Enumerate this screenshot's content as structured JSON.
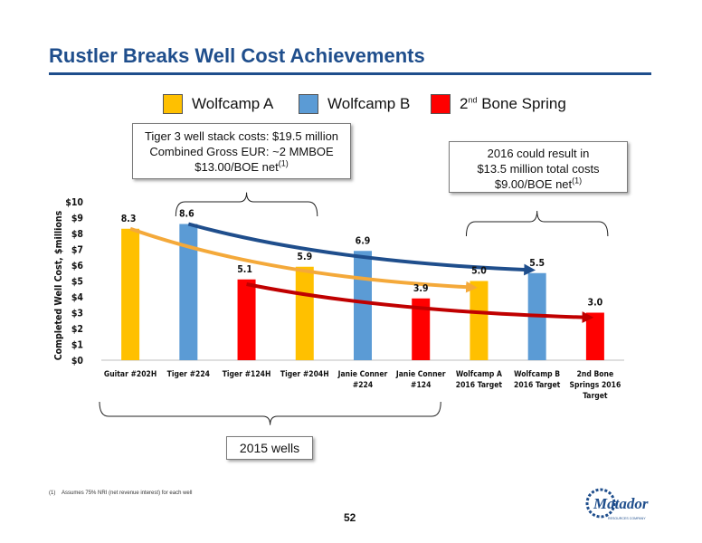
{
  "slide": {
    "title": "Rustler Breaks Well Cost Achievements",
    "page_number": "52",
    "footnote_marker": "(1)",
    "footnote_text": "Assumes 75% NRI (net revenue interest) for each well",
    "logo_text": "Matador",
    "logo_subtext": "RESOURCES COMPANY"
  },
  "legend": [
    {
      "label_main": "Wolfcamp A",
      "label_sup": "",
      "label_rest": "",
      "color": "#FFC000"
    },
    {
      "label_main": "Wolfcamp B",
      "label_sup": "",
      "label_rest": "",
      "color": "#5B9BD5"
    },
    {
      "label_main": "2",
      "label_sup": "nd",
      "label_rest": " Bone Spring",
      "color": "#FF0000"
    }
  ],
  "callouts": {
    "tiger": {
      "line1": "Tiger 3 well stack costs: $19.5 million",
      "line2": "Combined Gross EUR: ~2 MMBOE",
      "line3": "$13.00/BOE net",
      "line3_sup": "(1)"
    },
    "target": {
      "line1": "2016 could result in",
      "line2": "$13.5 million total costs",
      "line3": "$9.00/BOE net",
      "line3_sup": "(1)"
    },
    "wells2015": {
      "label": "2015 wells"
    }
  },
  "chart_data": {
    "type": "bar",
    "ylabel": "Completed Well Cost, $millions",
    "ylim": [
      0,
      10
    ],
    "yticks": [
      "$0",
      "$1",
      "$2",
      "$3",
      "$4",
      "$5",
      "$6",
      "$7",
      "$8",
      "$9",
      "$10"
    ],
    "bars": [
      {
        "category": [
          "Guitar #202H"
        ],
        "value": 8.3,
        "label": "8.3",
        "color": "#FFC000"
      },
      {
        "category": [
          "Tiger #224"
        ],
        "value": 8.6,
        "label": "8.6",
        "color": "#5B9BD5"
      },
      {
        "category": [
          "Tiger #124H"
        ],
        "value": 5.1,
        "label": "5.1",
        "color": "#FF0000"
      },
      {
        "category": [
          "Tiger #204H"
        ],
        "value": 5.9,
        "label": "5.9",
        "color": "#FFC000"
      },
      {
        "category": [
          "Janie Conner",
          "#224"
        ],
        "value": 6.9,
        "label": "6.9",
        "color": "#5B9BD5"
      },
      {
        "category": [
          "Janie Conner",
          "#124"
        ],
        "value": 3.9,
        "label": "3.9",
        "color": "#FF0000"
      },
      {
        "category": [
          "Wolfcamp A",
          "2016 Target"
        ],
        "value": 5.0,
        "label": "5.0",
        "color": "#FFC000"
      },
      {
        "category": [
          "Wolfcamp B",
          "2016 Target"
        ],
        "value": 5.5,
        "label": "5.5",
        "color": "#5B9BD5"
      },
      {
        "category": [
          "2nd Bone",
          "Springs 2016",
          "Target"
        ],
        "value": 3.0,
        "label": "3.0",
        "color": "#FF0000"
      }
    ],
    "trend_arrows": [
      {
        "series": "Wolfcamp A",
        "from": {
          "bar": 0,
          "value": 8.3
        },
        "to": {
          "bar": 6,
          "value": 4.6
        },
        "color": "#F4A93A"
      },
      {
        "series": "Wolfcamp B",
        "from": {
          "bar": 1,
          "value": 8.6
        },
        "to": {
          "bar": 7,
          "value": 5.7
        },
        "color": "#1F4E8C"
      },
      {
        "series": "2nd Bone Spring",
        "from": {
          "bar": 2,
          "value": 4.8
        },
        "to": {
          "bar": 8,
          "value": 2.7
        },
        "color": "#C00000"
      }
    ],
    "grid": false,
    "legend_position": "top"
  }
}
